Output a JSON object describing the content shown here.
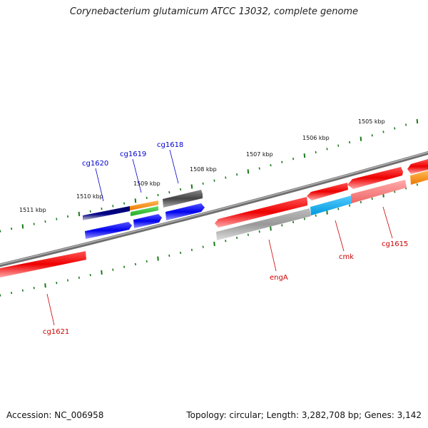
{
  "title": "Corynebacterium glutamicum ATCC 13032, complete genome",
  "accession_label": "Accession: NC_006958",
  "summary_label": "Topology: circular; Length: 3,282,708 bp; Genes: 3,142",
  "kbp_labels": [
    "1511 kbp",
    "1510 kbp",
    "1509 kbp",
    "1508 kbp",
    "1507 kbp",
    "1506 kbp",
    "1505 kbp"
  ],
  "gene_labels": {
    "outer": [
      "cg1620",
      "cg1619",
      "cg1618"
    ],
    "inner": [
      "cg1621",
      "engA",
      "cmk",
      "cg1615"
    ]
  },
  "colors": {
    "forward_label": "#0000cc",
    "reverse_label": "#cc0000",
    "tick": "#1a7a1a",
    "backbone": "#777777",
    "red": "#ee1111",
    "blue": "#1111dd",
    "navy": "#001177",
    "orange": "#ff8800",
    "green": "#33bb33",
    "darkgray": "#555555",
    "lightgray": "#aaaaaa",
    "cyan": "#11aaee",
    "pink": "#ee7777"
  }
}
